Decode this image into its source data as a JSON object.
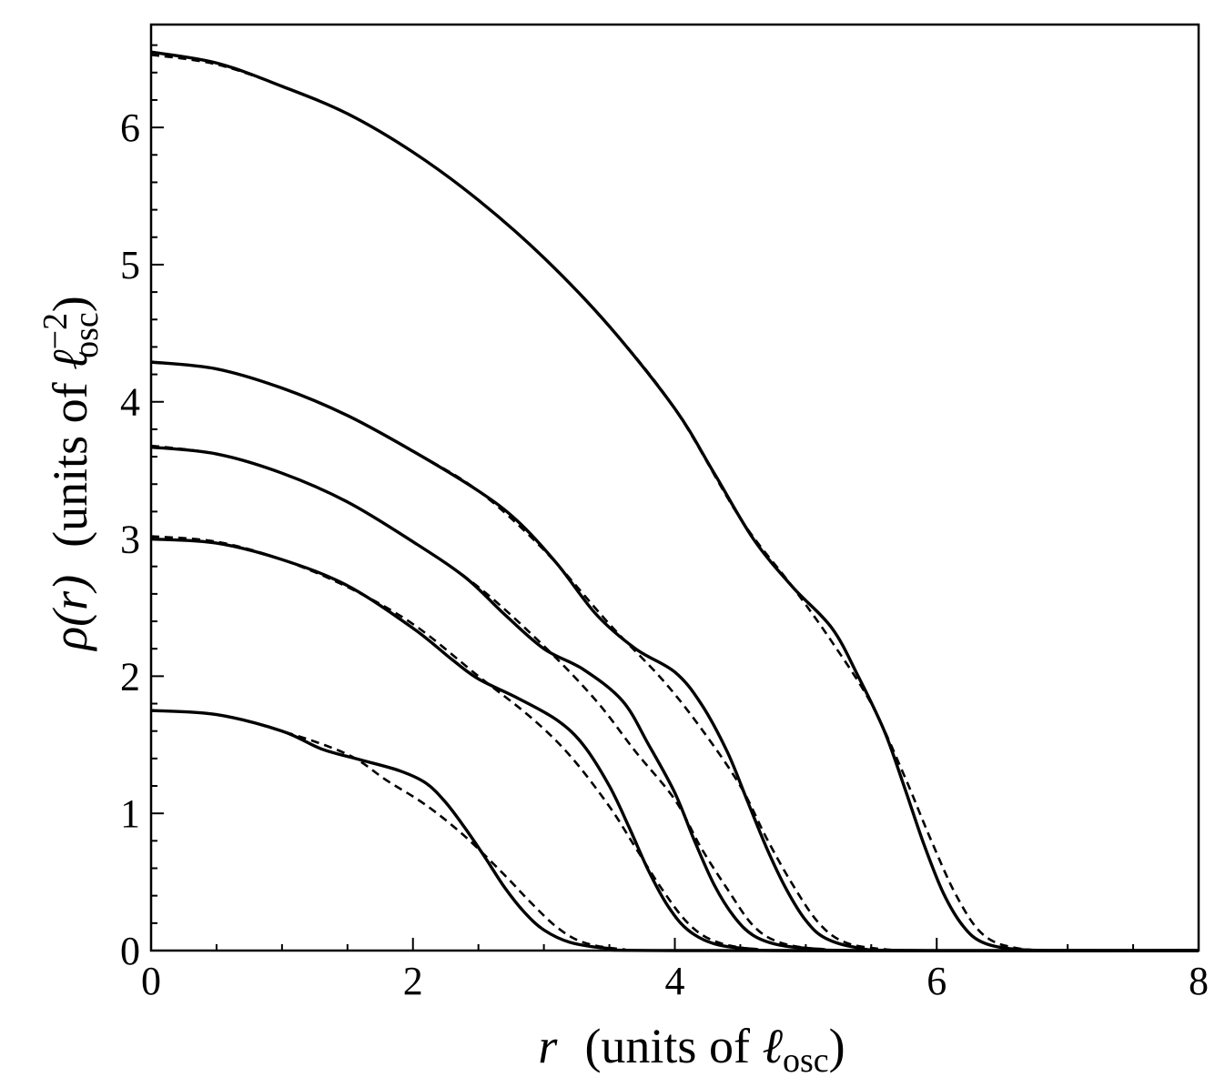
{
  "chart_data": {
    "type": "line",
    "xlabel": {
      "symbol": "r",
      "units_prefix": "(units of ",
      "units_symbol": "ℓ",
      "units_subscript": "osc",
      "units_suffix": ")"
    },
    "ylabel": {
      "symbol": "ρ(r)",
      "units_prefix": "(units of ",
      "units_symbol": "ℓ",
      "units_subscript": "osc",
      "units_superscript": "−2",
      "units_suffix": ")"
    },
    "xlim": [
      0,
      8
    ],
    "ylim": [
      0,
      6.75
    ],
    "x_ticks": [
      0,
      2,
      4,
      6,
      8
    ],
    "x_tick_labels": [
      "0",
      "2",
      "4",
      "6",
      "8"
    ],
    "y_ticks": [
      0,
      1,
      2,
      3,
      4,
      5,
      6
    ],
    "y_tick_labels": [
      "0",
      "1",
      "2",
      "3",
      "4",
      "5",
      "6"
    ],
    "x_minor_step": 0.5,
    "y_minor_step": 0.2,
    "grid": false,
    "legend": "none",
    "line_color": "#000000",
    "series": [
      {
        "style": "solid",
        "points": [
          [
            0,
            1.75
          ],
          [
            0.5,
            1.72
          ],
          [
            1.0,
            1.6
          ],
          [
            1.3,
            1.47
          ],
          [
            1.6,
            1.39
          ],
          [
            1.9,
            1.31
          ],
          [
            2.1,
            1.22
          ],
          [
            2.25,
            1.08
          ],
          [
            2.4,
            0.89
          ],
          [
            2.55,
            0.68
          ],
          [
            2.7,
            0.46
          ],
          [
            2.85,
            0.28
          ],
          [
            3.0,
            0.15
          ],
          [
            3.2,
            0.06
          ],
          [
            3.5,
            0.015
          ],
          [
            4.0,
            0.0
          ],
          [
            8.0,
            0.0
          ]
        ]
      },
      {
        "style": "dashed",
        "points": [
          [
            0,
            1.75
          ],
          [
            0.5,
            1.72
          ],
          [
            1.0,
            1.6
          ],
          [
            1.5,
            1.43
          ],
          [
            1.8,
            1.24
          ],
          [
            2.1,
            1.06
          ],
          [
            2.4,
            0.83
          ],
          [
            2.7,
            0.55
          ],
          [
            2.9,
            0.35
          ],
          [
            3.1,
            0.17
          ],
          [
            3.3,
            0.06
          ],
          [
            3.6,
            0.01
          ],
          [
            4.0,
            0.0
          ],
          [
            8.0,
            0.0
          ]
        ]
      },
      {
        "style": "solid",
        "points": [
          [
            0,
            3.0
          ],
          [
            0.5,
            2.97
          ],
          [
            1.0,
            2.85
          ],
          [
            1.5,
            2.66
          ],
          [
            2.0,
            2.35
          ],
          [
            2.3,
            2.12
          ],
          [
            2.5,
            1.98
          ],
          [
            2.8,
            1.84
          ],
          [
            3.1,
            1.68
          ],
          [
            3.3,
            1.5
          ],
          [
            3.5,
            1.2
          ],
          [
            3.65,
            0.9
          ],
          [
            3.8,
            0.58
          ],
          [
            3.95,
            0.32
          ],
          [
            4.1,
            0.15
          ],
          [
            4.3,
            0.05
          ],
          [
            4.6,
            0.01
          ],
          [
            5.0,
            0.0
          ],
          [
            8.0,
            0.0
          ]
        ]
      },
      {
        "style": "dashed",
        "points": [
          [
            0,
            3.02
          ],
          [
            0.5,
            2.98
          ],
          [
            1.0,
            2.85
          ],
          [
            1.5,
            2.65
          ],
          [
            2.0,
            2.38
          ],
          [
            2.5,
            2.0
          ],
          [
            2.9,
            1.7
          ],
          [
            3.2,
            1.42
          ],
          [
            3.5,
            1.05
          ],
          [
            3.7,
            0.75
          ],
          [
            3.9,
            0.45
          ],
          [
            4.1,
            0.2
          ],
          [
            4.3,
            0.07
          ],
          [
            4.6,
            0.01
          ],
          [
            5.0,
            0.0
          ],
          [
            8.0,
            0.0
          ]
        ]
      },
      {
        "style": "solid",
        "points": [
          [
            0,
            3.67
          ],
          [
            0.5,
            3.62
          ],
          [
            1.0,
            3.48
          ],
          [
            1.5,
            3.27
          ],
          [
            2.0,
            2.98
          ],
          [
            2.4,
            2.72
          ],
          [
            2.7,
            2.45
          ],
          [
            3.0,
            2.2
          ],
          [
            3.3,
            2.05
          ],
          [
            3.6,
            1.82
          ],
          [
            3.8,
            1.5
          ],
          [
            4.0,
            1.15
          ],
          [
            4.15,
            0.8
          ],
          [
            4.3,
            0.48
          ],
          [
            4.45,
            0.25
          ],
          [
            4.6,
            0.11
          ],
          [
            4.8,
            0.04
          ],
          [
            5.1,
            0.01
          ],
          [
            5.5,
            0.0
          ],
          [
            8.0,
            0.0
          ]
        ]
      },
      {
        "style": "dashed",
        "points": [
          [
            0,
            3.68
          ],
          [
            0.5,
            3.62
          ],
          [
            1.0,
            3.48
          ],
          [
            1.5,
            3.27
          ],
          [
            2.0,
            2.98
          ],
          [
            2.5,
            2.65
          ],
          [
            3.0,
            2.22
          ],
          [
            3.4,
            1.82
          ],
          [
            3.7,
            1.45
          ],
          [
            4.0,
            1.1
          ],
          [
            4.2,
            0.75
          ],
          [
            4.4,
            0.45
          ],
          [
            4.6,
            0.18
          ],
          [
            4.8,
            0.06
          ],
          [
            5.1,
            0.01
          ],
          [
            5.5,
            0.0
          ],
          [
            8.0,
            0.0
          ]
        ]
      },
      {
        "style": "solid",
        "points": [
          [
            0,
            4.29
          ],
          [
            0.5,
            4.24
          ],
          [
            1.0,
            4.1
          ],
          [
            1.5,
            3.9
          ],
          [
            2.0,
            3.64
          ],
          [
            2.5,
            3.35
          ],
          [
            2.8,
            3.13
          ],
          [
            3.1,
            2.82
          ],
          [
            3.4,
            2.45
          ],
          [
            3.7,
            2.2
          ],
          [
            4.0,
            2.03
          ],
          [
            4.2,
            1.8
          ],
          [
            4.4,
            1.45
          ],
          [
            4.55,
            1.1
          ],
          [
            4.7,
            0.75
          ],
          [
            4.85,
            0.45
          ],
          [
            5.0,
            0.22
          ],
          [
            5.15,
            0.09
          ],
          [
            5.4,
            0.02
          ],
          [
            5.8,
            0.0
          ],
          [
            8.0,
            0.0
          ]
        ]
      },
      {
        "style": "dashed",
        "points": [
          [
            0,
            4.29
          ],
          [
            0.5,
            4.24
          ],
          [
            1.0,
            4.1
          ],
          [
            1.5,
            3.9
          ],
          [
            2.0,
            3.64
          ],
          [
            2.5,
            3.35
          ],
          [
            3.0,
            2.92
          ],
          [
            3.5,
            2.38
          ],
          [
            3.9,
            1.98
          ],
          [
            4.2,
            1.62
          ],
          [
            4.5,
            1.2
          ],
          [
            4.7,
            0.82
          ],
          [
            4.9,
            0.48
          ],
          [
            5.1,
            0.2
          ],
          [
            5.3,
            0.06
          ],
          [
            5.6,
            0.01
          ],
          [
            6.0,
            0.0
          ],
          [
            8.0,
            0.0
          ]
        ]
      },
      {
        "style": "solid",
        "points": [
          [
            0,
            6.55
          ],
          [
            0.5,
            6.47
          ],
          [
            1.0,
            6.3
          ],
          [
            1.5,
            6.1
          ],
          [
            2.0,
            5.82
          ],
          [
            2.5,
            5.47
          ],
          [
            3.0,
            5.05
          ],
          [
            3.5,
            4.55
          ],
          [
            4.0,
            3.95
          ],
          [
            4.3,
            3.48
          ],
          [
            4.6,
            3.0
          ],
          [
            4.9,
            2.65
          ],
          [
            5.2,
            2.35
          ],
          [
            5.4,
            2.0
          ],
          [
            5.6,
            1.6
          ],
          [
            5.75,
            1.2
          ],
          [
            5.9,
            0.78
          ],
          [
            6.05,
            0.42
          ],
          [
            6.2,
            0.18
          ],
          [
            6.35,
            0.06
          ],
          [
            6.6,
            0.01
          ],
          [
            7.0,
            0.0
          ],
          [
            8.0,
            0.0
          ]
        ]
      },
      {
        "style": "dashed",
        "points": [
          [
            0,
            6.53
          ],
          [
            0.5,
            6.46
          ],
          [
            1.0,
            6.3
          ],
          [
            1.5,
            6.1
          ],
          [
            2.0,
            5.82
          ],
          [
            2.5,
            5.47
          ],
          [
            3.0,
            5.05
          ],
          [
            3.5,
            4.55
          ],
          [
            4.0,
            3.95
          ],
          [
            4.5,
            3.15
          ],
          [
            4.9,
            2.65
          ],
          [
            5.2,
            2.25
          ],
          [
            5.5,
            1.8
          ],
          [
            5.75,
            1.28
          ],
          [
            5.95,
            0.82
          ],
          [
            6.15,
            0.4
          ],
          [
            6.35,
            0.12
          ],
          [
            6.6,
            0.02
          ],
          [
            7.0,
            0.0
          ],
          [
            8.0,
            0.0
          ]
        ]
      }
    ]
  }
}
